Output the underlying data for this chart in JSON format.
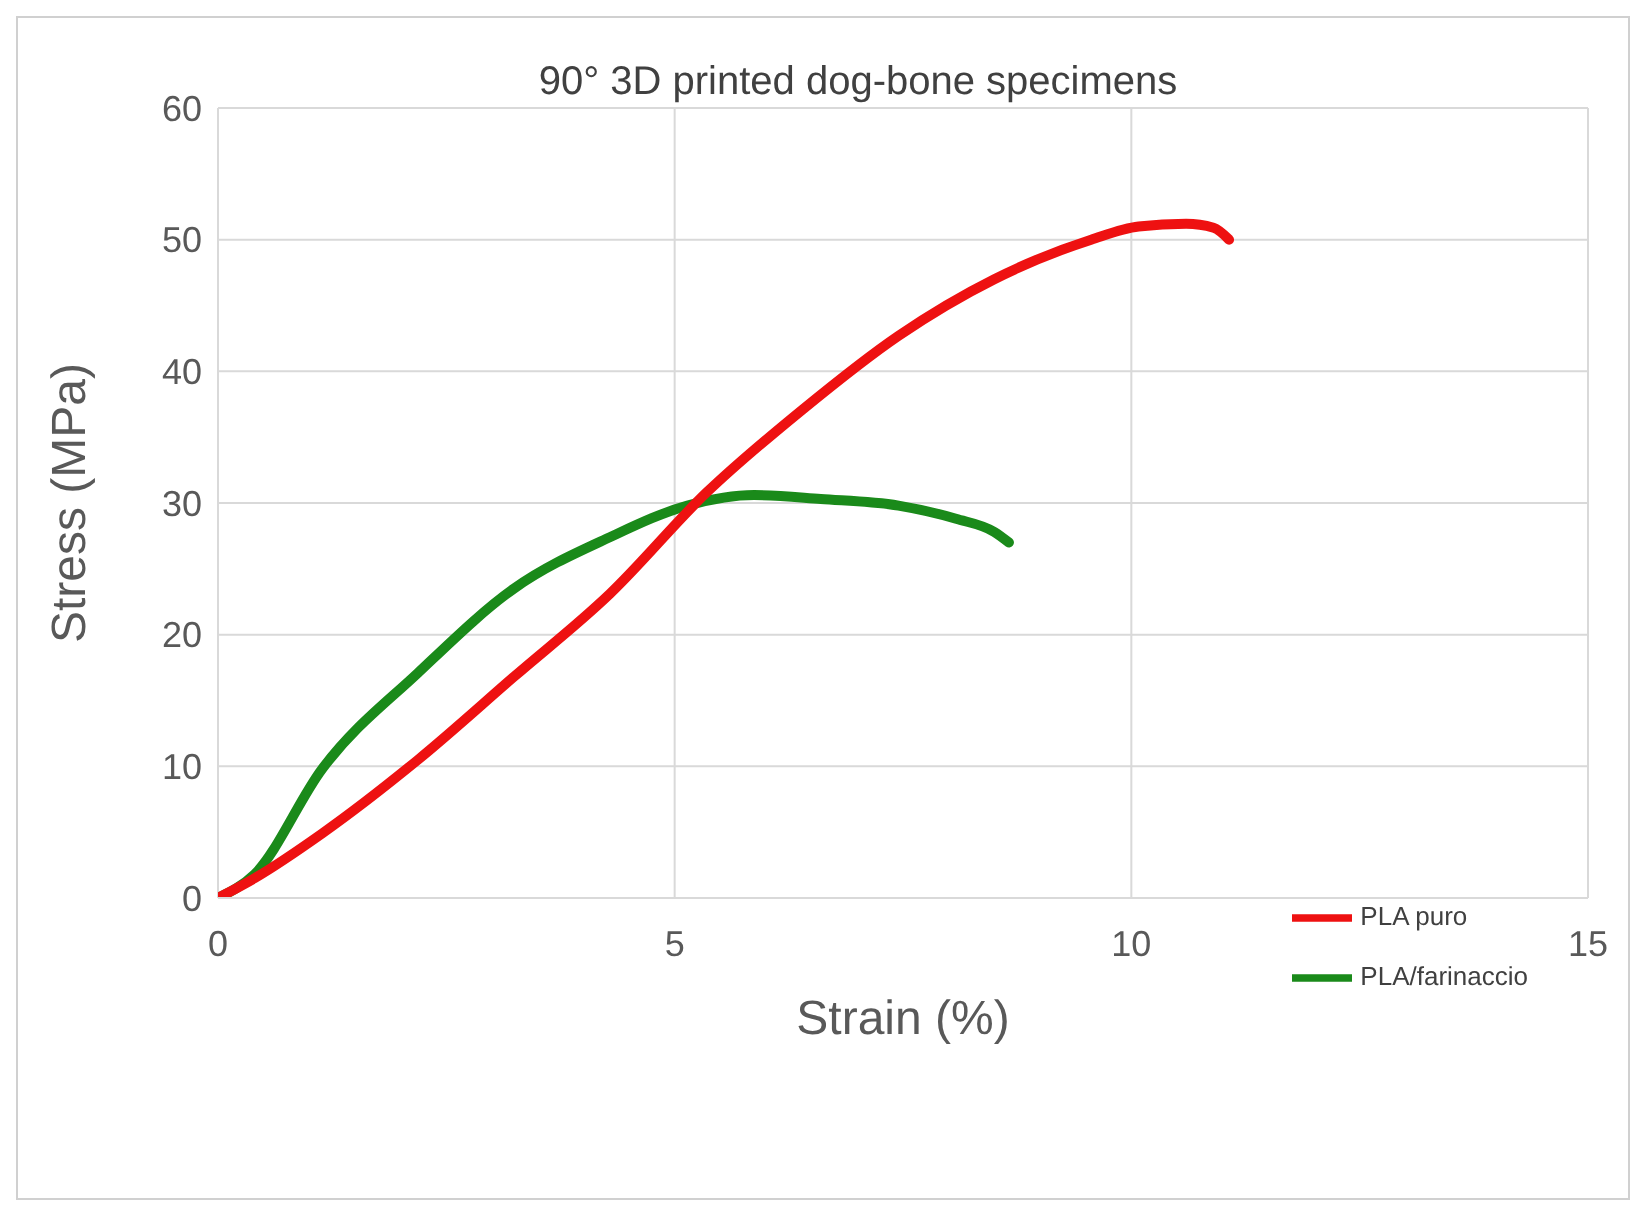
{
  "chart_data": {
    "type": "line",
    "title": "90° 3D printed dog-bone specimens",
    "xlabel": "Strain (%)",
    "ylabel": "Stress (MPa)",
    "xlim": [
      0,
      15
    ],
    "xticks": [
      0,
      5,
      10,
      15
    ],
    "ylim": [
      0,
      60
    ],
    "yticks": [
      0,
      10,
      20,
      30,
      40,
      50,
      60
    ],
    "grid": true,
    "legend": "bottom right",
    "marker": "none",
    "line_style": "solid",
    "series": [
      {
        "name": "PLA/farinaccio",
        "color": "#1a8a1a",
        "x": [
          0,
          0.4,
          1.14,
          2.19,
          3.24,
          4.29,
          5.14,
          5.87,
          6.6,
          7.45,
          8.08,
          8.5,
          8.66
        ],
        "values": [
          0,
          1.8,
          9.8,
          17.1,
          23.5,
          27.4,
          29.8,
          30.6,
          30.3,
          29.8,
          28.8,
          27.8,
          27
        ]
      },
      {
        "name": "PLA puro",
        "color": "#ee1111",
        "x": [
          0,
          0.4,
          1.14,
          2.19,
          3.24,
          4.29,
          5.35,
          6.4,
          7.45,
          8.5,
          9.56,
          10.08,
          10.6,
          10.9,
          11.07
        ],
        "values": [
          0,
          1.5,
          4.9,
          10.5,
          16.8,
          23.1,
          30.8,
          37.1,
          42.7,
          47,
          50,
          51,
          51.2,
          50.9,
          50
        ]
      }
    ]
  }
}
